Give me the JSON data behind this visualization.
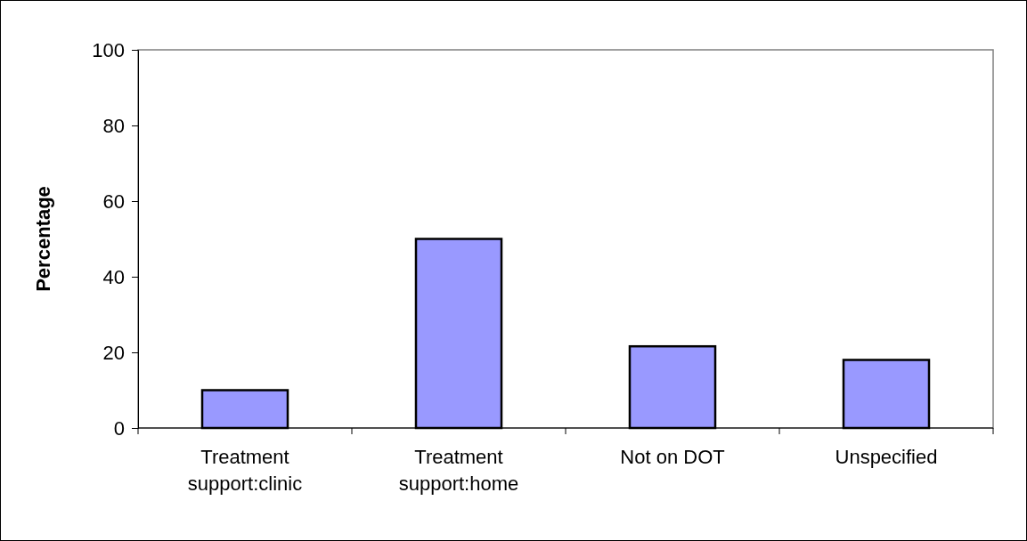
{
  "chart_data": {
    "type": "bar",
    "ylabel": "Percentage",
    "categories": [
      "Treatment support:clinic",
      "Treatment support:home",
      "Not on DOT",
      "Unspecified"
    ],
    "values": [
      10,
      50,
      21.6,
      18
    ],
    "color": "#9999ff",
    "ylim": [
      0,
      100
    ],
    "yticks": [
      0,
      20,
      40,
      60,
      80,
      100
    ],
    "grid": false
  }
}
